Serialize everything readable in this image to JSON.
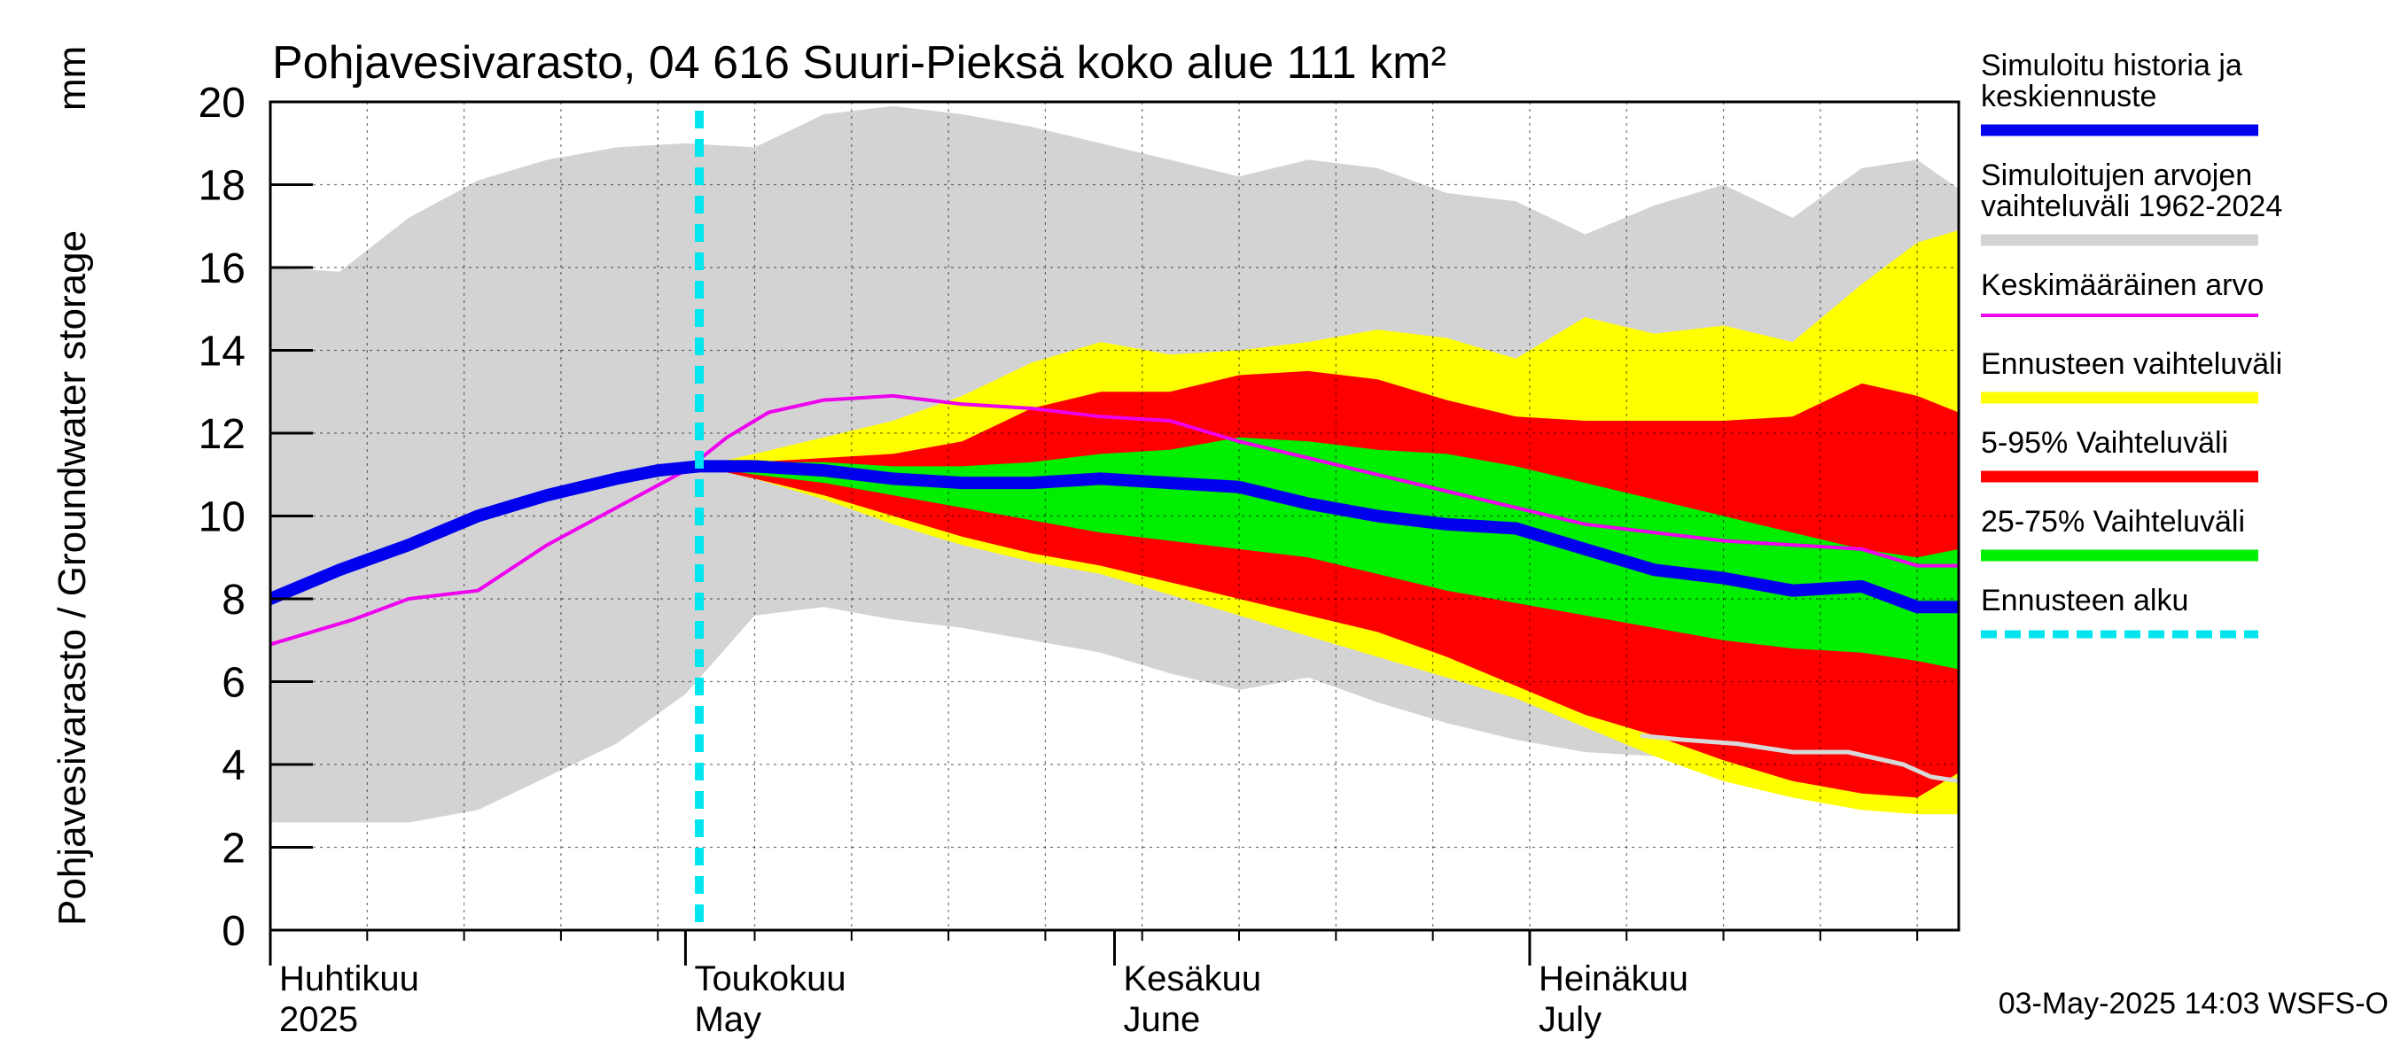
{
  "chart_data": {
    "type": "area",
    "title": "Pohjavesivarasto, 04 616 Suuri-Pieksä koko alue 111 km²",
    "ylabel": "Pohjavesivarasto / Groundwater storage",
    "yunit": "mm",
    "ylim": [
      0,
      20
    ],
    "yticks": [
      0,
      2,
      4,
      6,
      8,
      10,
      12,
      14,
      16,
      18,
      20
    ],
    "xlim": [
      0,
      122
    ],
    "grid": true,
    "month_labels": [
      {
        "day": 0,
        "line1": "Huhtikuu",
        "line2": "2025"
      },
      {
        "day": 30,
        "line1": "Toukokuu",
        "line2": "May"
      },
      {
        "day": 61,
        "line1": "Kesäkuu",
        "line2": "June"
      },
      {
        "day": 91,
        "line1": "Heinäkuu",
        "line2": "July"
      }
    ],
    "forecast_start_day": 31,
    "colors": {
      "history_range": "#d3d3d3",
      "forecast_range": "#ffff00",
      "p5_95": "#ff0000",
      "p25_75": "#00ee00",
      "median": "#0000ee",
      "mean": "#ee00ee",
      "mean_late": "#d8d8d8",
      "forecast_start": "#00e5ee"
    },
    "series": [
      {
        "name": "Simuloitujen arvojen vaihteluväli 1962-2024",
        "key": "history_range",
        "x": [
          0,
          5,
          10,
          15,
          20,
          25,
          30,
          35,
          40,
          45,
          50,
          55,
          60,
          65,
          70,
          75,
          80,
          85,
          90,
          95,
          100,
          105,
          110,
          115,
          119,
          122
        ],
        "upper": [
          16.0,
          15.9,
          17.2,
          18.1,
          18.6,
          18.9,
          19.0,
          18.9,
          19.7,
          19.9,
          19.7,
          19.4,
          19.0,
          18.6,
          18.2,
          18.6,
          18.4,
          17.8,
          17.6,
          16.8,
          17.5,
          18.0,
          17.2,
          18.4,
          18.6,
          17.9
        ],
        "lower": [
          2.6,
          2.6,
          2.6,
          2.9,
          3.7,
          4.5,
          5.7,
          7.6,
          7.8,
          7.5,
          7.3,
          7.0,
          6.7,
          6.2,
          5.8,
          6.1,
          5.5,
          5.0,
          4.6,
          4.3,
          4.2,
          4.1,
          4.0,
          3.8,
          3.7,
          3.6
        ]
      },
      {
        "name": "Ennusteen vaihteluväli",
        "key": "forecast_range",
        "x": [
          31,
          35,
          40,
          45,
          50,
          55,
          60,
          65,
          70,
          75,
          80,
          85,
          90,
          95,
          100,
          105,
          110,
          115,
          119,
          122
        ],
        "upper": [
          11.2,
          11.5,
          11.9,
          12.3,
          12.9,
          13.7,
          14.2,
          13.9,
          14.0,
          14.2,
          14.5,
          14.3,
          13.8,
          14.8,
          14.4,
          14.6,
          14.2,
          15.6,
          16.6,
          16.9
        ],
        "lower": [
          11.2,
          10.9,
          10.4,
          9.8,
          9.3,
          8.9,
          8.6,
          8.1,
          7.6,
          7.1,
          6.6,
          6.1,
          5.6,
          4.9,
          4.2,
          3.6,
          3.2,
          2.9,
          2.8,
          2.8
        ]
      },
      {
        "name": "5-95% Vaihteluväli",
        "key": "p5_95",
        "x": [
          31,
          35,
          40,
          45,
          50,
          55,
          60,
          65,
          70,
          75,
          80,
          85,
          90,
          95,
          100,
          105,
          110,
          115,
          119,
          122
        ],
        "upper": [
          11.2,
          11.3,
          11.4,
          11.5,
          11.8,
          12.6,
          13.0,
          13.0,
          13.4,
          13.5,
          13.3,
          12.8,
          12.4,
          12.3,
          12.3,
          12.3,
          12.4,
          13.2,
          12.9,
          12.5
        ],
        "lower": [
          11.2,
          10.9,
          10.5,
          10.0,
          9.5,
          9.1,
          8.8,
          8.4,
          8.0,
          7.6,
          7.2,
          6.6,
          5.9,
          5.2,
          4.7,
          4.1,
          3.6,
          3.3,
          3.2,
          3.8
        ]
      },
      {
        "name": "25-75% Vaihteluväli",
        "key": "p25_75",
        "x": [
          31,
          35,
          40,
          45,
          50,
          55,
          60,
          65,
          70,
          75,
          80,
          85,
          90,
          95,
          100,
          105,
          110,
          115,
          119,
          122
        ],
        "upper": [
          11.2,
          11.3,
          11.3,
          11.2,
          11.2,
          11.3,
          11.5,
          11.6,
          11.9,
          11.8,
          11.6,
          11.5,
          11.2,
          10.8,
          10.4,
          10.0,
          9.6,
          9.2,
          9.0,
          9.2
        ],
        "lower": [
          11.2,
          11.0,
          10.8,
          10.5,
          10.2,
          9.9,
          9.6,
          9.4,
          9.2,
          9.0,
          8.6,
          8.2,
          7.9,
          7.6,
          7.3,
          7.0,
          6.8,
          6.7,
          6.5,
          6.3
        ]
      },
      {
        "name": "Keskimääräinen arvo",
        "key": "mean",
        "x": [
          0,
          3,
          6,
          10,
          15,
          20,
          25,
          30,
          33,
          36,
          40,
          45,
          50,
          55,
          60,
          65,
          70,
          75,
          80,
          85,
          90,
          95,
          100,
          105,
          110,
          115,
          119,
          122
        ],
        "y": [
          6.9,
          7.2,
          7.5,
          8.0,
          8.2,
          9.3,
          10.2,
          11.1,
          11.9,
          12.5,
          12.8,
          12.9,
          12.7,
          12.6,
          12.4,
          12.3,
          11.8,
          11.4,
          11.0,
          10.6,
          10.2,
          9.8,
          9.6,
          9.4,
          9.3,
          9.2,
          8.8,
          8.8
        ]
      },
      {
        "name": "Keskimääräinen arvo (loppu)",
        "key": "mean_late",
        "x": [
          99,
          102,
          106,
          110,
          114,
          118,
          120,
          122
        ],
        "y": [
          4.7,
          4.6,
          4.5,
          4.3,
          4.3,
          4.0,
          3.7,
          3.6
        ]
      },
      {
        "name": "Simuloitu historia ja keskiennuste",
        "key": "median",
        "x": [
          0,
          5,
          10,
          15,
          20,
          25,
          28,
          31,
          35,
          40,
          45,
          50,
          55,
          60,
          65,
          70,
          75,
          80,
          85,
          90,
          95,
          100,
          105,
          110,
          115,
          119,
          122
        ],
        "y": [
          8.0,
          8.7,
          9.3,
          10.0,
          10.5,
          10.9,
          11.1,
          11.2,
          11.2,
          11.1,
          10.9,
          10.8,
          10.8,
          10.9,
          10.8,
          10.7,
          10.3,
          10.0,
          9.8,
          9.7,
          9.2,
          8.7,
          8.5,
          8.2,
          8.3,
          7.8,
          7.8
        ]
      }
    ],
    "legend": [
      {
        "label": "Simuloitu historia ja keskiennuste",
        "key": "median",
        "style": "line",
        "line1": "Simuloitu historia ja",
        "line2": "keskiennuste"
      },
      {
        "label": "Simuloitujen arvojen vaihteluväli 1962-2024",
        "key": "history_range",
        "style": "band",
        "line1": "Simuloitujen arvojen",
        "line2": "vaihteluväli 1962-2024"
      },
      {
        "label": "Keskimääräinen arvo",
        "key": "mean",
        "style": "thin",
        "line1": "Keskimääräinen arvo",
        "line2": ""
      },
      {
        "label": "Ennusteen vaihteluväli",
        "key": "forecast_range",
        "style": "band",
        "line1": "Ennusteen vaihteluväli",
        "line2": ""
      },
      {
        "label": "5-95% Vaihteluväli",
        "key": "p5_95",
        "style": "band",
        "line1": "5-95% Vaihteluväli",
        "line2": ""
      },
      {
        "label": "25-75% Vaihteluväli",
        "key": "p25_75",
        "style": "band",
        "line1": "25-75% Vaihteluväli",
        "line2": ""
      },
      {
        "label": "Ennusteen alku",
        "key": "forecast_start",
        "style": "dashed",
        "line1": "Ennusteen alku",
        "line2": ""
      }
    ],
    "footer": "03-May-2025 14:03 WSFS-O"
  }
}
